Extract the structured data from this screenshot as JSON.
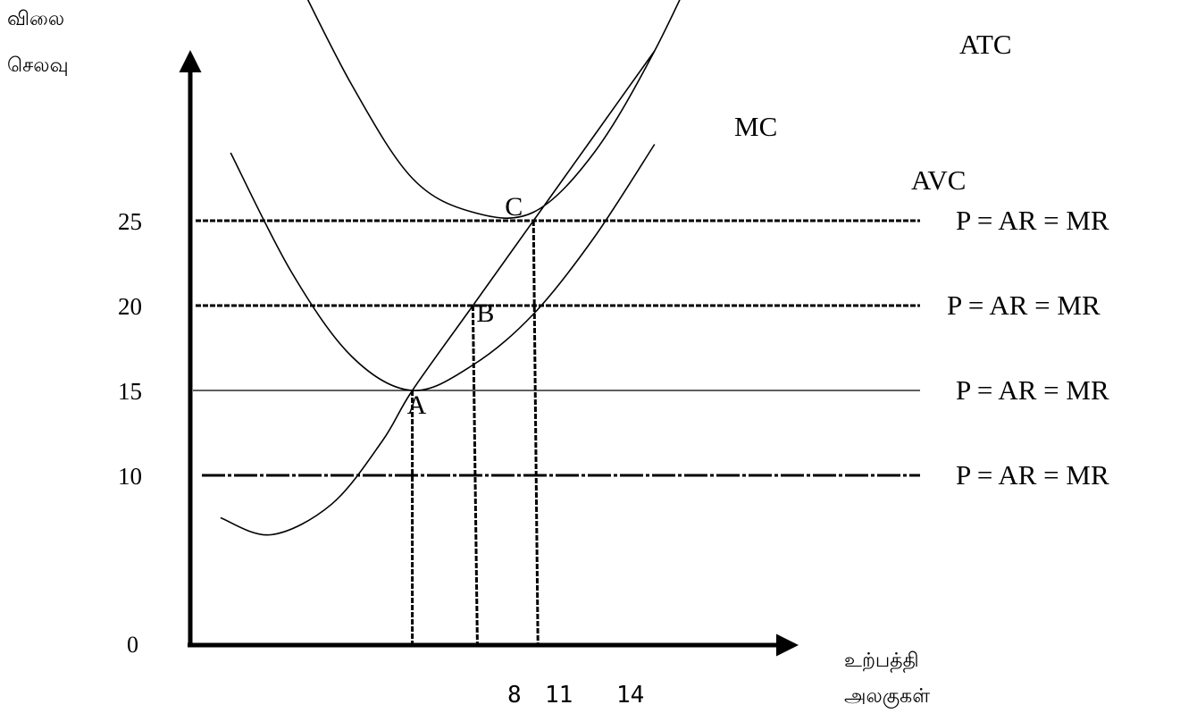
{
  "chart_data": {
    "type": "line",
    "ylabel_lines": [
      "விலை",
      "செலவு"
    ],
    "xlabel_lines": [
      "உற்பத்தி",
      "அலகுகள்"
    ],
    "origin_label": "0",
    "y_ticks": [
      "10",
      "15",
      "20",
      "25"
    ],
    "x_ticks": [
      "8",
      "11",
      "14"
    ],
    "price_lines": [
      {
        "price": 25,
        "label": "P = AR = MR",
        "style": "dashed"
      },
      {
        "price": 20,
        "label": "P = AR = MR",
        "style": "dashed"
      },
      {
        "price": 15,
        "label": "P = AR = MR",
        "style": "solid"
      },
      {
        "price": 10,
        "label": "P = AR = MR",
        "style": "dash-dot"
      }
    ],
    "series": [
      {
        "name": "MC",
        "points": [
          [
            1.5,
            7.5
          ],
          [
            4,
            6.5
          ],
          [
            7,
            8.3
          ],
          [
            9.5,
            12
          ],
          [
            11,
            15
          ],
          [
            14,
            20
          ],
          [
            17,
            25
          ],
          [
            20,
            30
          ],
          [
            23,
            35
          ]
        ]
      },
      {
        "name": "AVC",
        "points": [
          [
            2,
            29
          ],
          [
            5,
            22
          ],
          [
            8,
            17
          ],
          [
            11,
            15
          ],
          [
            14,
            16.5
          ],
          [
            17,
            19.5
          ],
          [
            20,
            24
          ],
          [
            23,
            29.5
          ]
        ]
      },
      {
        "name": "ATC",
        "points": [
          [
            5,
            40
          ],
          [
            8,
            33
          ],
          [
            11,
            27.5
          ],
          [
            14,
            25.5
          ],
          [
            17,
            25.5
          ],
          [
            20,
            29
          ],
          [
            23,
            35
          ],
          [
            26,
            42.5
          ]
        ]
      }
    ],
    "points": [
      {
        "label": "A",
        "x": 11,
        "y": 15
      },
      {
        "label": "B",
        "x": 14,
        "y": 20
      },
      {
        "label": "C",
        "x": 17,
        "y": 25
      }
    ],
    "xlim": [
      0,
      36
    ],
    "ylim": [
      0,
      43
    ]
  }
}
